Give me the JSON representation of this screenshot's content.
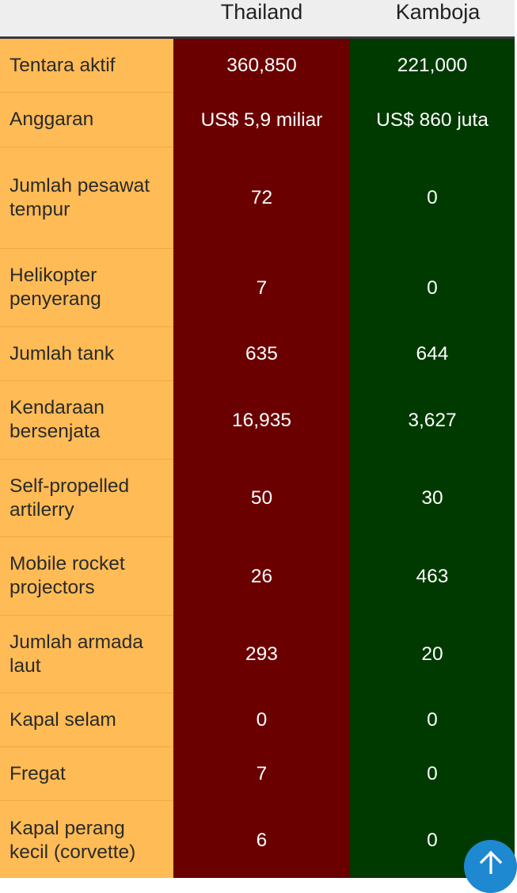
{
  "header": {
    "col_thailand": "Thailand",
    "col_kamboja": "Kamboja"
  },
  "rows": [
    {
      "label": "Tentara aktif",
      "thailand": "360,850",
      "kamboja": "221,000"
    },
    {
      "label": "Anggaran",
      "thailand": "US$ 5,9 miliar",
      "kamboja": "US$ 860 juta"
    },
    {
      "label": "Jumlah pesawat tempur",
      "thailand": "72",
      "kamboja": "0"
    },
    {
      "label": "Helikopter penyerang",
      "thailand": "7",
      "kamboja": "0"
    },
    {
      "label": "Jumlah tank",
      "thailand": "635",
      "kamboja": "644"
    },
    {
      "label": "Kendaraan bersenjata",
      "thailand": "16,935",
      "kamboja": "3,627"
    },
    {
      "label": "Self-propelled artilerry",
      "thailand": "50",
      "kamboja": "30"
    },
    {
      "label": "Mobile rocket projectors",
      "thailand": "26",
      "kamboja": "463"
    },
    {
      "label": "Jumlah armada laut",
      "thailand": "293",
      "kamboja": "20"
    },
    {
      "label": "Kapal selam",
      "thailand": "0",
      "kamboja": "0"
    },
    {
      "label": "Fregat",
      "thailand": "7",
      "kamboja": "0"
    },
    {
      "label": "Kapal perang kecil (corvette)",
      "thailand": "6",
      "kamboja": "0"
    }
  ],
  "scroll_button": {
    "icon": "arrow-up-icon"
  },
  "colors": {
    "label_bg": "#ffbb55",
    "thailand_bg": "#6b0000",
    "kamboja_bg": "#003a00",
    "header_bg": "#eeeeee",
    "scroll_button_bg": "#1e88d0"
  }
}
